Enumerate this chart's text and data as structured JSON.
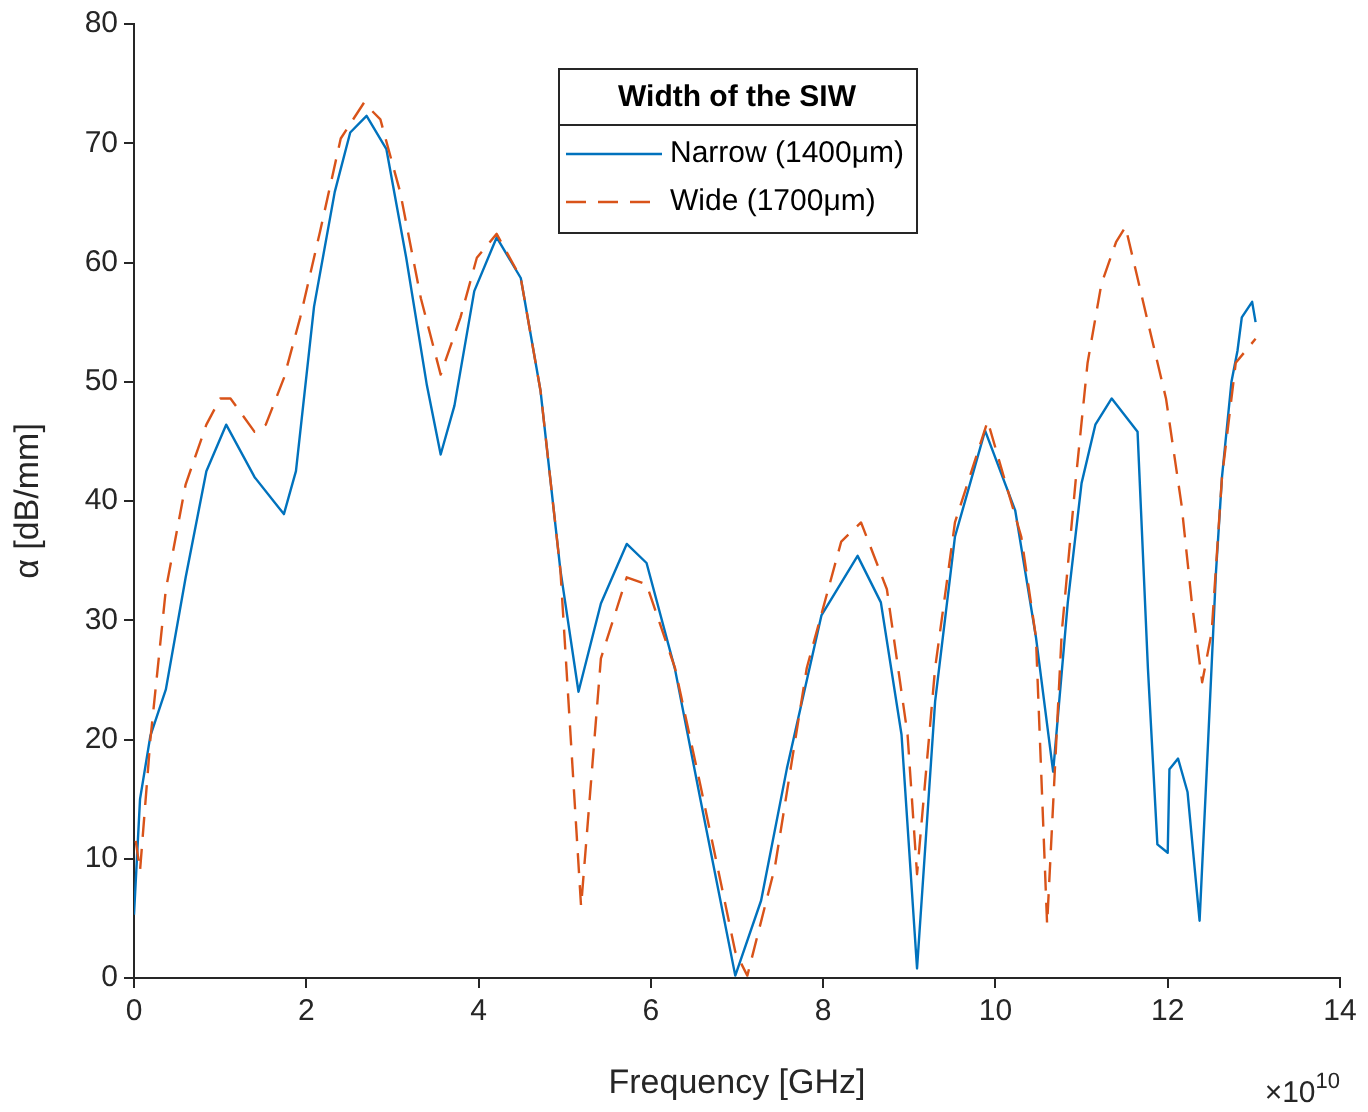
{
  "chart_data": {
    "type": "line",
    "xlabel": "Frequency [GHz]",
    "ylabel": "α [dB/mm]",
    "legend_title": "Width of the SIW",
    "legend": "top",
    "grid": false,
    "marker": "none",
    "xlim": [
      0,
      14
    ],
    "xticks": [
      0,
      2,
      4,
      6,
      8,
      10,
      12,
      14
    ],
    "ylim": [
      0,
      80
    ],
    "yticks": [
      0,
      10,
      20,
      30,
      40,
      50,
      60,
      70,
      80
    ],
    "annotations": [
      "×10$^{10}$"
    ],
    "series": [
      {
        "name": "Narrow (1400μm)",
        "color": "#0072bd",
        "line_style": "solid",
        "x": [
          0,
          0.07,
          0.19,
          0.37,
          0.6,
          0.84,
          1.07,
          1.4,
          1.74,
          1.88,
          2.09,
          2.33,
          2.51,
          2.7,
          2.93,
          3.16,
          3.4,
          3.56,
          3.72,
          3.95,
          4.21,
          4.49,
          4.72,
          4.95,
          5.16,
          5.42,
          5.72,
          5.95,
          6.28,
          6.58,
          6.98,
          7.28,
          7.58,
          7.98,
          8.4,
          8.67,
          8.91,
          9.09,
          9.3,
          9.53,
          9.88,
          10.23,
          10.47,
          10.67,
          10.84,
          11,
          11.16,
          11.35,
          11.65,
          11.77,
          11.88,
          12,
          12.02,
          12.12,
          12.23,
          12.37,
          12.47,
          12.56,
          12.63,
          12.74,
          12.81,
          12.86,
          12.98,
          13.02
        ],
        "values": [
          5.3,
          15,
          20.3,
          24.2,
          33.6,
          42.5,
          46.4,
          42,
          38.9,
          42.5,
          56.3,
          65.9,
          70.9,
          72.3,
          69.5,
          60.4,
          49.7,
          43.9,
          48,
          57.6,
          62.1,
          58.7,
          49.2,
          34.2,
          24,
          31.4,
          36.4,
          34.8,
          25.9,
          14.8,
          0.2,
          6.5,
          17.6,
          30.4,
          35.4,
          31.5,
          20.4,
          0.8,
          23.2,
          37,
          45.9,
          39.2,
          28.6,
          17.3,
          31.5,
          41.5,
          46.4,
          48.6,
          45.8,
          26,
          11.2,
          10.5,
          17.5,
          18.4,
          15.6,
          4.8,
          20,
          34,
          42,
          50,
          52.6,
          55.4,
          56.7,
          55
        ]
      },
      {
        "name": "Wide (1700μm)",
        "color": "#d95319",
        "line_style": "dashed",
        "x": [
          0.02,
          0.07,
          0.19,
          0.37,
          0.6,
          0.84,
          1,
          1.12,
          1.4,
          1.53,
          1.74,
          1.93,
          2.16,
          2.4,
          2.67,
          2.86,
          3.09,
          3.33,
          3.56,
          3.79,
          3.98,
          4.21,
          4.49,
          4.72,
          4.95,
          5.19,
          5.42,
          5.72,
          5.95,
          6.28,
          6.58,
          6.98,
          7.12,
          7.44,
          7.81,
          8.21,
          8.44,
          8.74,
          8.98,
          9.09,
          9.3,
          9.53,
          9.91,
          10.3,
          10.47,
          10.6,
          10.77,
          10.93,
          11.07,
          11.23,
          11.4,
          11.51,
          11.77,
          11.98,
          12.16,
          12.28,
          12.4,
          12.51,
          12.63,
          12.79,
          13.02
        ],
        "values": [
          11.5,
          9,
          20,
          32.6,
          41.4,
          46.4,
          48.6,
          48.6,
          45.8,
          46.4,
          50.3,
          55.4,
          62.6,
          70.4,
          73.4,
          72,
          65.9,
          57,
          50.6,
          55.4,
          60.4,
          62.4,
          58.7,
          49.2,
          34.2,
          6,
          26.8,
          33.6,
          33,
          26,
          16,
          2.2,
          0.2,
          9.3,
          26,
          36.6,
          38.2,
          32.6,
          20.4,
          8.7,
          26,
          38.2,
          46.7,
          37,
          28.6,
          4.5,
          29,
          41.6,
          51.6,
          58.2,
          61.7,
          63,
          55,
          48.6,
          39.7,
          31.5,
          24.8,
          29,
          42,
          51.6,
          53.6
        ]
      }
    ]
  }
}
